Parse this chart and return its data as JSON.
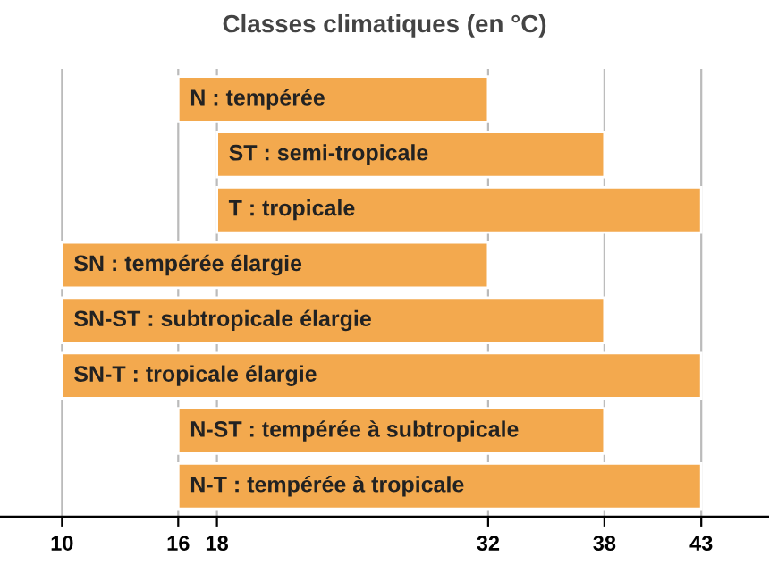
{
  "chart_data": {
    "type": "bar",
    "orientation": "horizontal",
    "title": "Classes climatiques (en °C)",
    "categories": [
      "N : tempérée",
      "ST : semi-tropicale",
      "T : tropicale",
      "SN : tempérée élargie",
      "SN-ST : subtropicale élargie",
      "SN-T : tropicale élargie",
      "N-ST : tempérée à subtropicale",
      "N-T : tempérée à tropicale"
    ],
    "base": [
      16,
      18,
      18,
      10,
      10,
      10,
      16,
      16
    ],
    "values": [
      16,
      20,
      25,
      22,
      28,
      33,
      22,
      27
    ],
    "color": "#f3a94e",
    "xlim": [
      6.8,
      46.5
    ],
    "xticks": [
      10,
      16,
      18,
      32,
      38,
      43
    ],
    "grid": "x"
  }
}
